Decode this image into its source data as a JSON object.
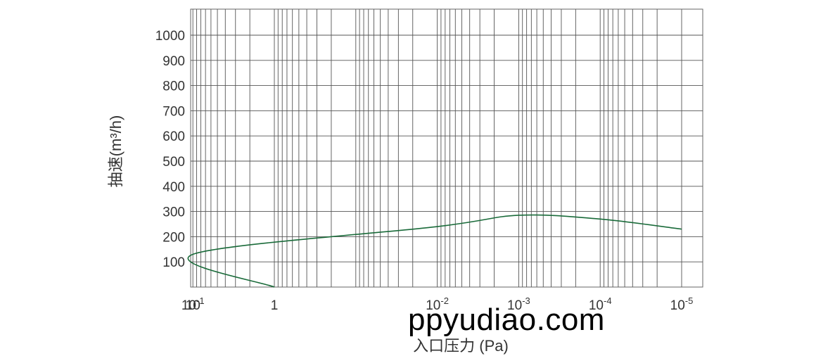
{
  "chart_data": {
    "type": "line",
    "title": "",
    "xlabel": "入口压力 (Pa)",
    "ylabel": "抽速(m³/h)",
    "x_scale": "log-reversed",
    "x_ticks": [
      {
        "base": "10",
        "exp": "-1"
      },
      {
        "base": "1",
        "exp": ""
      },
      {
        "base": "10",
        "exp": ""
      },
      {
        "base": "10",
        "exp": "-2"
      },
      {
        "base": "10",
        "exp": "-3"
      },
      {
        "base": "10",
        "exp": "-4"
      },
      {
        "base": "10",
        "exp": "-5"
      }
    ],
    "y_ticks": [
      "100",
      "200",
      "300",
      "400",
      "500",
      "600",
      "700",
      "800",
      "900",
      "1000"
    ],
    "ylim": [
      0,
      1100
    ],
    "grid": true,
    "series": [
      {
        "color": "#1a6b3a",
        "points": [
          {
            "x": "1",
            "y": 0
          },
          {
            "x": "10",
            "y": 130
          },
          {
            "x": "10^-2",
            "y": 240
          },
          {
            "x": "10^-3",
            "y": 285
          },
          {
            "x": "10^-4",
            "y": 270
          },
          {
            "x": "10^-5",
            "y": 230
          }
        ]
      }
    ]
  },
  "watermark": "ppyudiao.com"
}
